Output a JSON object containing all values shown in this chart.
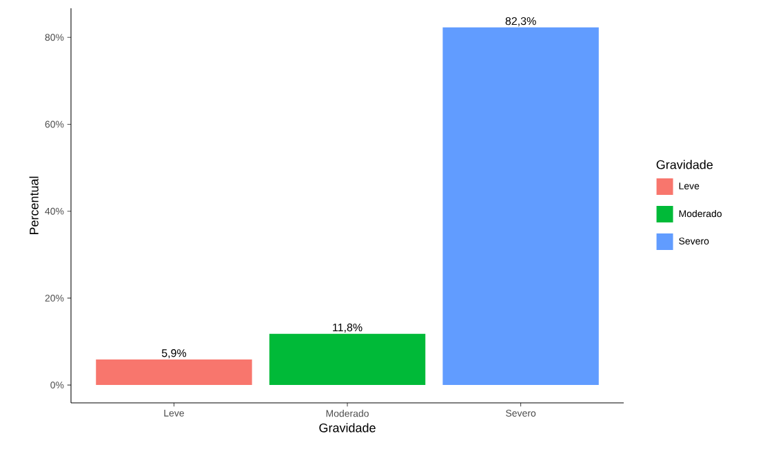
{
  "chart_data": {
    "type": "bar",
    "xlabel": "Gravidade",
    "ylabel": "Percentual",
    "legend_title": "Gravidade",
    "categories": [
      "Leve",
      "Moderado",
      "Severo"
    ],
    "series": [
      {
        "name": "Leve",
        "color": "#f8766d",
        "values": [
          5.9,
          null,
          null
        ],
        "value_labels": [
          "5,9%",
          null,
          null
        ]
      },
      {
        "name": "Moderado",
        "color": "#00ba38",
        "values": [
          null,
          11.8,
          null
        ],
        "value_labels": [
          null,
          "11,8%",
          null
        ]
      },
      {
        "name": "Severo",
        "color": "#619cff",
        "values": [
          null,
          null,
          82.3
        ],
        "value_labels": [
          null,
          null,
          "82,3%"
        ]
      }
    ],
    "ylim": [
      -4.1,
      86.7
    ],
    "yticks": [
      {
        "value": 0,
        "label": "0%"
      },
      {
        "value": 20,
        "label": "20%"
      },
      {
        "value": 40,
        "label": "40%"
      },
      {
        "value": 60,
        "label": "60%"
      },
      {
        "value": 80,
        "label": "80%"
      }
    ],
    "grid": false,
    "legend": "right"
  }
}
